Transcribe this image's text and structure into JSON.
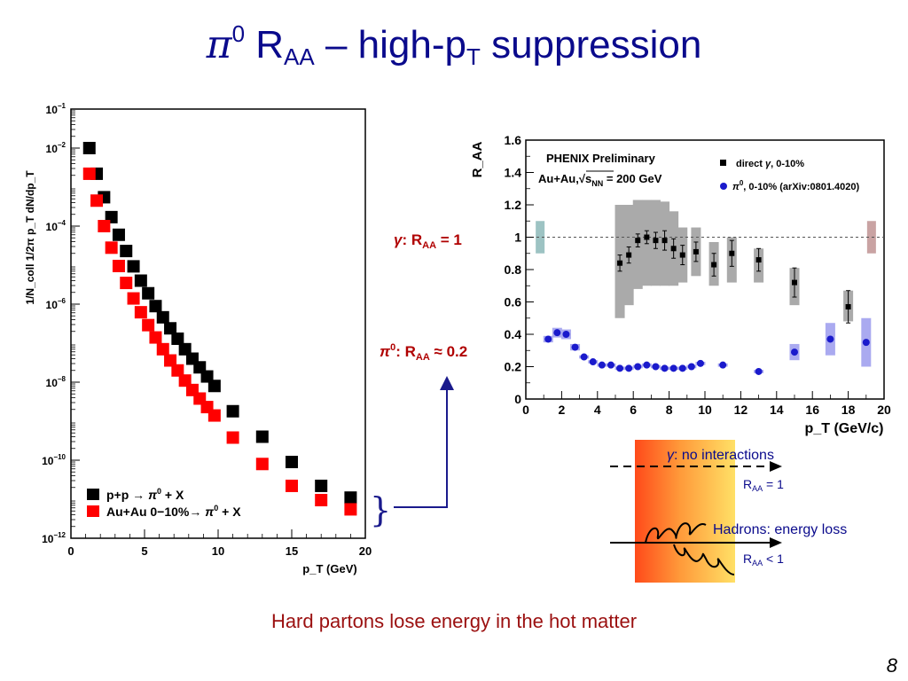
{
  "slide": {
    "title_pi": "π",
    "title_zero": "0",
    "title_r": " R",
    "title_aa": "AA",
    "title_rest": " – high-p",
    "title_t": "T",
    "title_end": " suppression",
    "caption": "Hard partons lose energy in the hot matter",
    "page_number": "8"
  },
  "annotations": {
    "gamma_label_sym": "γ",
    "gamma_label_text": ": R",
    "gamma_label_sub": "AA",
    "gamma_label_value": " = 1",
    "pi0_label_sym": "π",
    "pi0_label_sup": "0",
    "pi0_label_text": ": R",
    "pi0_label_sub": "AA",
    "pi0_label_value": " ≈ 0.2",
    "brace": "}"
  },
  "diagram": {
    "gamma_text_sym": "γ",
    "gamma_text": ": no interactions",
    "raa1_r": "R",
    "raa1_sub": "AA",
    "raa1_val": " = 1",
    "hadrons_text": "Hadrons: energy loss",
    "raa2_r": "R",
    "raa2_sub": "AA",
    "raa2_val": " < 1",
    "colors": {
      "hot": "#ff4a1a",
      "cool": "#ffe066",
      "text": "#0a0a8c",
      "arrow": "#000000",
      "brace": "#1a1a8c"
    }
  },
  "chart_data": [
    {
      "type": "scatter",
      "ylog": true,
      "xlim": [
        0,
        20
      ],
      "ylim": [
        1e-12,
        0.1
      ],
      "xticks": [
        "0",
        "5",
        "10",
        "15",
        "20"
      ],
      "yticks": [
        {
          "base": "10",
          "exp": "−1"
        },
        {
          "base": "10",
          "exp": "−2"
        },
        {
          "base": "10",
          "exp": "−4"
        },
        {
          "base": "10",
          "exp": "−6"
        },
        {
          "base": "10",
          "exp": "−8"
        },
        {
          "base": "10",
          "exp": "−10"
        },
        {
          "base": "10",
          "exp": "−12"
        }
      ],
      "ytick_values": [
        0.1,
        0.01,
        0.0001,
        1e-06,
        1e-08,
        1e-10,
        1e-12
      ],
      "ylabel": "1/N_coll 1/2π p_T dN/dp_T",
      "xlabel": "p_T (GeV)",
      "legend_position": "bottom-left",
      "series": [
        {
          "name": "p+p → π0 + X",
          "legend_main": "p+p ",
          "legend_arrow": "→ ",
          "legend_pi": "π",
          "legend_sup": "0",
          "legend_end": " + X",
          "color": "#000000",
          "x": [
            1.25,
            1.75,
            2.25,
            2.75,
            3.25,
            3.75,
            4.25,
            4.75,
            5.25,
            5.75,
            6.25,
            6.75,
            7.25,
            7.75,
            8.25,
            8.75,
            9.25,
            9.75,
            11,
            13,
            15,
            17,
            19
          ],
          "y": [
            0.01,
            0.0022,
            0.00055,
            0.00017,
            6e-05,
            2.3e-05,
            9.3e-06,
            4e-06,
            1.9e-06,
            8.9e-07,
            4.6e-07,
            2.4e-07,
            1.3e-07,
            7e-08,
            4e-08,
            2.4e-08,
            1.4e-08,
            8e-09,
            1.8e-09,
            4e-10,
            9e-11,
            2.2e-11,
            1.1e-11
          ]
        },
        {
          "name": "Au+Au 0−10%→ π0 + X",
          "legend_main": "Au+Au 0−10%",
          "legend_arrow": "→ ",
          "legend_pi": "π",
          "legend_sup": "0",
          "legend_end": " + X",
          "color": "#ff0000",
          "x": [
            1.25,
            1.75,
            2.25,
            2.75,
            3.25,
            3.75,
            4.25,
            4.75,
            5.25,
            5.75,
            6.25,
            6.75,
            7.25,
            7.75,
            8.25,
            8.75,
            9.25,
            9.75,
            11,
            13,
            15,
            17,
            19
          ],
          "y": [
            0.0022,
            0.00045,
            0.0001,
            2.8e-05,
            9.5e-06,
            3.5e-06,
            1.4e-06,
            6.2e-07,
            2.9e-07,
            1.4e-07,
            7e-08,
            3.6e-08,
            2e-08,
            1.1e-08,
            6.3e-09,
            3.8e-09,
            2.3e-09,
            1.4e-09,
            3.8e-10,
            8e-11,
            2.2e-11,
            9.5e-12,
            5.5e-12
          ]
        }
      ]
    },
    {
      "type": "scatter",
      "xlim": [
        0,
        20
      ],
      "ylim": [
        0,
        1.6
      ],
      "xticks": [
        "0",
        "2",
        "4",
        "6",
        "8",
        "10",
        "12",
        "14",
        "16",
        "18",
        "20"
      ],
      "yticks": [
        "0",
        "0.2",
        "0.4",
        "0.6",
        "0.8",
        "1",
        "1.2",
        "1.4",
        "1.6"
      ],
      "ylabel": "R_AA",
      "xlabel": "p_T (GeV/c)",
      "reference_line": 1,
      "legend_position": "top-right",
      "header_line1": "PHENIX Preliminary",
      "header_line2_pre": "Au+Au,",
      "header_line2_sqrt": "s",
      "header_line2_sub": "NN",
      "header_line2_post": " = 200 GeV",
      "uncertainty_bars": [
        {
          "x": 0.8,
          "low": 0.9,
          "high": 1.1,
          "color": "#9dc3c3"
        },
        {
          "x": 19.3,
          "low": 0.9,
          "high": 1.1,
          "color": "#c9a3a3"
        }
      ],
      "series": [
        {
          "name": "direct γ, 0-10%",
          "legend_pre": "direct ",
          "legend_sym": "γ",
          "legend_post": ", 0-10%",
          "marker": "square",
          "color": "#000000",
          "box_color": "#aaaaaa",
          "x": [
            5.25,
            5.75,
            6.25,
            6.75,
            7.25,
            7.75,
            8.25,
            8.75,
            9.5,
            10.5,
            11.5,
            13,
            15,
            18
          ],
          "y": [
            0.84,
            0.89,
            0.98,
            1.0,
            0.98,
            0.98,
            0.93,
            0.89,
            0.91,
            0.83,
            0.9,
            0.86,
            0.72,
            0.57
          ],
          "stat_lo": [
            0.79,
            0.84,
            0.94,
            0.96,
            0.93,
            0.92,
            0.87,
            0.83,
            0.85,
            0.76,
            0.82,
            0.79,
            0.63,
            0.47
          ],
          "stat_hi": [
            0.89,
            0.94,
            1.02,
            1.04,
            1.03,
            1.04,
            0.99,
            0.95,
            0.97,
            0.9,
            0.98,
            0.93,
            0.81,
            0.67
          ],
          "sys_lo": [
            0.5,
            0.58,
            0.68,
            0.7,
            0.7,
            0.7,
            0.7,
            0.72,
            0.76,
            0.7,
            0.72,
            0.72,
            0.58,
            0.48
          ],
          "sys_hi": [
            1.2,
            1.2,
            1.23,
            1.23,
            1.23,
            1.22,
            1.16,
            1.06,
            1.06,
            0.97,
            1.0,
            0.93,
            0.81,
            0.67
          ]
        },
        {
          "name": "π0, 0-10% (arXiv:0801.4020)",
          "legend_sym": "π",
          "legend_sup": "0",
          "legend_post": ", 0-10% (arXiv:0801.4020)",
          "marker": "circle",
          "color": "#1a1acc",
          "box_color": "#aaaaf0",
          "x": [
            1.25,
            1.75,
            2.25,
            2.75,
            3.25,
            3.75,
            4.25,
            4.75,
            5.25,
            5.75,
            6.25,
            6.75,
            7.25,
            7.75,
            8.25,
            8.75,
            9.25,
            9.75,
            11,
            13,
            15,
            17,
            19
          ],
          "y": [
            0.37,
            0.41,
            0.4,
            0.32,
            0.26,
            0.23,
            0.21,
            0.21,
            0.19,
            0.19,
            0.2,
            0.21,
            0.2,
            0.19,
            0.19,
            0.19,
            0.2,
            0.22,
            0.21,
            0.17,
            0.29,
            0.37,
            0.35
          ],
          "sys_lo": [
            0.35,
            0.38,
            0.37,
            0.3,
            0.25,
            0.22,
            0.2,
            0.2,
            0.18,
            0.18,
            0.19,
            0.2,
            0.19,
            0.18,
            0.18,
            0.18,
            0.19,
            0.21,
            0.2,
            0.16,
            0.24,
            0.27,
            0.2
          ],
          "sys_hi": [
            0.39,
            0.44,
            0.43,
            0.34,
            0.27,
            0.24,
            0.22,
            0.22,
            0.2,
            0.2,
            0.21,
            0.22,
            0.21,
            0.2,
            0.2,
            0.2,
            0.21,
            0.23,
            0.22,
            0.18,
            0.34,
            0.47,
            0.5
          ]
        }
      ]
    }
  ]
}
